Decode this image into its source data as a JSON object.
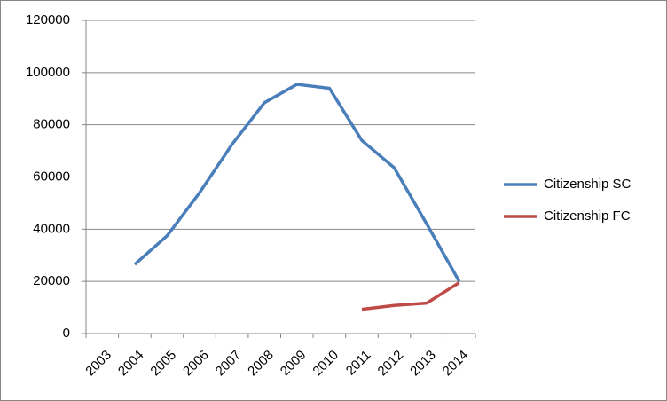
{
  "chart_data": {
    "type": "line",
    "categories": [
      "2003",
      "2004",
      "2005",
      "2006",
      "2007",
      "2008",
      "2009",
      "2010",
      "2011",
      "2012",
      "2013",
      "2014"
    ],
    "series": [
      {
        "name": "Citizenship SC",
        "color": "#4a7ebb",
        "values": [
          null,
          26500,
          37500,
          54000,
          72500,
          88500,
          95500,
          94000,
          74000,
          63500,
          42000,
          20000
        ]
      },
      {
        "name": "Citizenship FC",
        "color": "#be4b48",
        "values": [
          null,
          null,
          null,
          null,
          null,
          null,
          null,
          null,
          9300,
          10800,
          11700,
          19500
        ]
      }
    ],
    "ylim": [
      0,
      120000
    ],
    "yticks": [
      0,
      20000,
      40000,
      60000,
      80000,
      100000,
      120000
    ],
    "grid": true,
    "legend": "right"
  }
}
